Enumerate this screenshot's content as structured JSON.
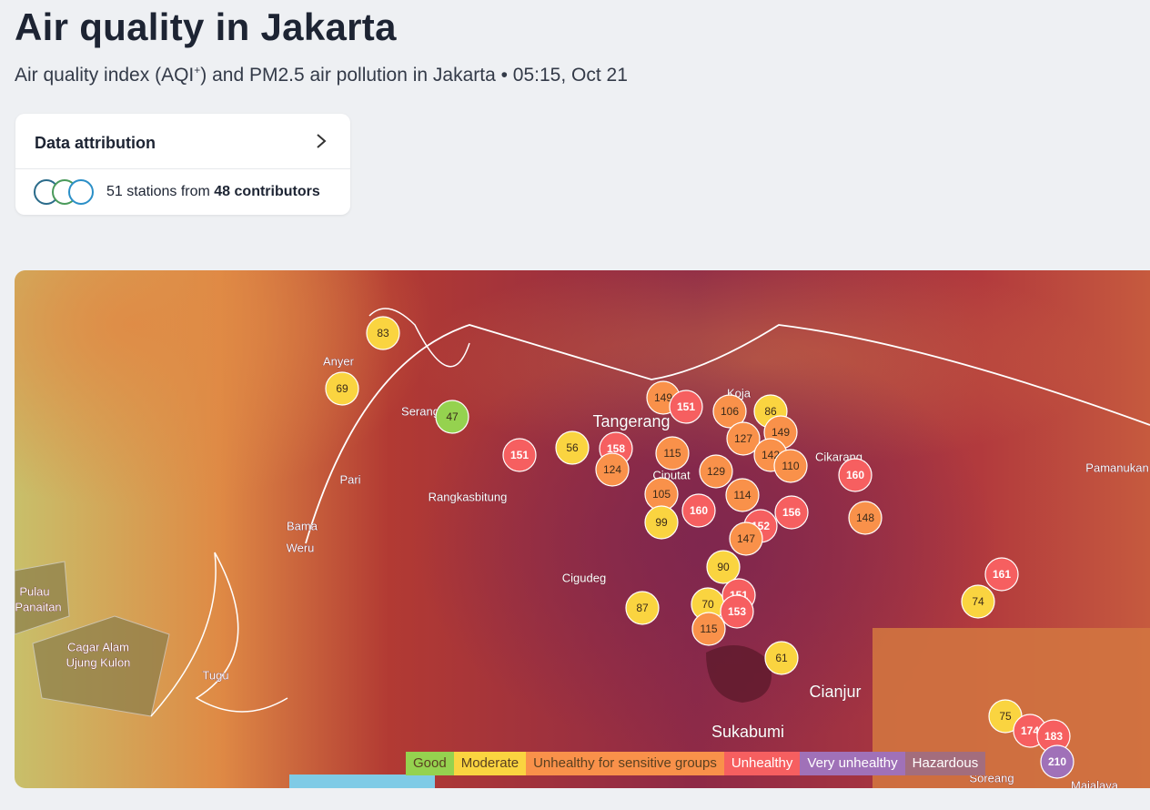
{
  "header": {
    "title": "Air quality in Jakarta",
    "subtitle_before": "Air quality index (AQI",
    "subtitle_sup": "+",
    "subtitle_after": ") and PM2.5 air pollution in Jakarta • 05:15, Oct 21"
  },
  "attribution": {
    "title": "Data attribution",
    "stations": "51 stations from",
    "contributors": "48 contributors"
  },
  "map": {
    "places": [
      "Anyer",
      "Serang",
      "Pari",
      "Tangerang",
      "Rangkasbitung",
      "Bama",
      "Weru",
      "Pulau",
      "Panaitan",
      "Cagar Alam",
      "Ujung Kulon",
      "Tugu",
      "Cigudeg",
      "Cikarang",
      "Pamanukan",
      "Cianjur",
      "Sukabumi",
      "Koja",
      "Ciputat",
      "Soreang",
      "Majalaya"
    ],
    "markers": [
      {
        "aqi": 83
      },
      {
        "aqi": 69
      },
      {
        "aqi": 47
      },
      {
        "aqi": 151
      },
      {
        "aqi": 56
      },
      {
        "aqi": 158
      },
      {
        "aqi": 124
      },
      {
        "aqi": 149
      },
      {
        "aqi": 151
      },
      {
        "aqi": 106
      },
      {
        "aqi": 86
      },
      {
        "aqi": 127
      },
      {
        "aqi": 149
      },
      {
        "aqi": 142
      },
      {
        "aqi": 110
      },
      {
        "aqi": 115
      },
      {
        "aqi": 129
      },
      {
        "aqi": 105
      },
      {
        "aqi": 114
      },
      {
        "aqi": 160
      },
      {
        "aqi": 99
      },
      {
        "aqi": 152
      },
      {
        "aqi": 156
      },
      {
        "aqi": 147
      },
      {
        "aqi": 160
      },
      {
        "aqi": 148
      },
      {
        "aqi": 90
      },
      {
        "aqi": 87
      },
      {
        "aqi": 70
      },
      {
        "aqi": 151
      },
      {
        "aqi": 153
      },
      {
        "aqi": 115
      },
      {
        "aqi": 61
      },
      {
        "aqi": 161
      },
      {
        "aqi": 74
      },
      {
        "aqi": 75
      },
      {
        "aqi": 174
      },
      {
        "aqi": 183
      },
      {
        "aqi": 210
      }
    ],
    "legend": [
      {
        "label": "Good",
        "color": "#95d24f"
      },
      {
        "label": "Moderate",
        "color": "#fad440"
      },
      {
        "label": "Unhealthy for sensitive groups",
        "color": "#f9914a"
      },
      {
        "label": "Unhealthy",
        "color": "#f65f60"
      },
      {
        "label": "Very unhealthy",
        "color": "#a071b8"
      },
      {
        "label": "Hazardous",
        "color": "#a36d7d"
      }
    ]
  }
}
